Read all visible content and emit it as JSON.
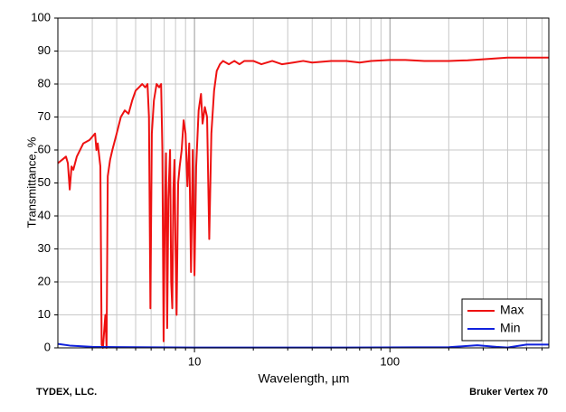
{
  "chart_data": {
    "type": "line",
    "x_label": "Wavelength, µm",
    "y_label": "Transmittance, %",
    "footer_left": "TYDEX, LLC.",
    "footer_right": "Bruker Vertex 70",
    "xscale": "log",
    "xlim": [
      2,
      650
    ],
    "xticks": [
      10,
      100
    ],
    "xminor": [
      3,
      4,
      5,
      6,
      7,
      8,
      9,
      20,
      30,
      40,
      50,
      60,
      70,
      80,
      90,
      200,
      300,
      400,
      500,
      600
    ],
    "ylim": [
      0,
      100
    ],
    "yticks": [
      0,
      10,
      20,
      30,
      40,
      50,
      60,
      70,
      80,
      90,
      100
    ],
    "grid": true,
    "legend": "lower right",
    "series": [
      {
        "name": "Max",
        "color": "#ee1111",
        "x": [
          2.0,
          2.1,
          2.2,
          2.25,
          2.3,
          2.35,
          2.4,
          2.5,
          2.7,
          2.9,
          3.0,
          3.1,
          3.15,
          3.2,
          3.3,
          3.35,
          3.4,
          3.5,
          3.55,
          3.6,
          3.7,
          3.8,
          4.0,
          4.2,
          4.4,
          4.6,
          4.8,
          5.0,
          5.2,
          5.4,
          5.6,
          5.75,
          5.85,
          5.95,
          6.05,
          6.2,
          6.4,
          6.6,
          6.75,
          6.85,
          6.95,
          7.05,
          7.15,
          7.25,
          7.35,
          7.5,
          7.6,
          7.7,
          7.8,
          7.9,
          8.0,
          8.1,
          8.25,
          8.4,
          8.6,
          8.8,
          9.0,
          9.2,
          9.4,
          9.6,
          9.8,
          10.0,
          10.2,
          10.5,
          10.8,
          11.0,
          11.3,
          11.6,
          11.9,
          12.2,
          12.6,
          13.0,
          13.5,
          14,
          15,
          16,
          17,
          18,
          20,
          22,
          25,
          28,
          32,
          36,
          40,
          50,
          60,
          70,
          80,
          100,
          120,
          150,
          200,
          250,
          300,
          400,
          500,
          650
        ],
        "values": [
          56,
          57,
          58,
          56,
          48,
          55,
          54,
          58,
          62,
          63,
          64,
          65,
          60,
          62,
          55,
          1,
          0,
          10,
          0,
          52,
          57,
          60,
          65,
          70,
          72,
          71,
          75,
          78,
          79,
          80,
          79,
          80,
          70,
          12,
          65,
          75,
          80,
          79,
          80,
          60,
          2,
          40,
          59,
          6,
          45,
          60,
          20,
          12,
          48,
          57,
          30,
          10,
          50,
          55,
          60,
          69,
          65,
          49,
          62,
          23,
          60,
          22,
          55,
          72,
          77,
          68,
          73,
          70,
          33,
          65,
          78,
          84,
          86,
          87,
          86,
          87,
          86,
          87,
          87,
          86,
          87,
          86,
          86.5,
          87,
          86.5,
          87,
          87,
          86.5,
          87,
          87.3,
          87.3,
          87,
          87,
          87.2,
          87.5,
          88,
          88,
          88
        ]
      },
      {
        "name": "Min",
        "color": "#1122dd",
        "x": [
          2.0,
          2.3,
          3,
          5,
          10,
          50,
          200,
          280,
          350,
          400,
          500,
          650
        ],
        "values": [
          1.2,
          0.7,
          0.3,
          0.2,
          0.1,
          0.1,
          0.2,
          0.8,
          0.3,
          0.1,
          1,
          1
        ]
      }
    ]
  }
}
